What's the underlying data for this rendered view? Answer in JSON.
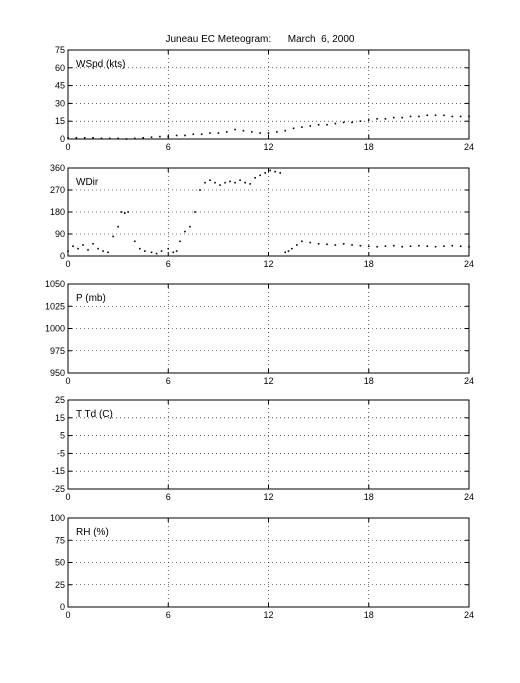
{
  "title": "Juneau EC Meteogram:      March  6, 2000",
  "x_ticks": [
    0,
    6,
    12,
    18,
    24
  ],
  "chart_data": [
    {
      "type": "scatter",
      "label": "WSpd (kts)",
      "xlim": [
        0,
        24
      ],
      "ylim": [
        0,
        75
      ],
      "yticks": [
        0,
        15,
        30,
        45,
        60,
        75
      ],
      "grid": true,
      "series": [
        {
          "x": [
            0,
            0.5,
            1,
            1.5,
            2,
            2.5,
            3,
            3.5,
            4,
            4.5,
            5,
            5.5,
            6,
            6.5,
            7,
            7.5,
            8,
            8.5,
            9,
            9.5,
            10,
            10.5,
            11,
            11.5,
            12,
            12.5,
            13,
            13.5,
            14,
            14.5,
            15,
            15.5,
            16,
            16.5,
            17,
            17.5,
            18,
            18.5,
            19,
            19.5,
            20,
            20.5,
            21,
            21.5,
            22,
            22.5,
            23,
            23.5,
            24
          ],
          "y": [
            1,
            1,
            1,
            1,
            0.5,
            0.5,
            0.5,
            0,
            0.5,
            1,
            1.5,
            2,
            2,
            3,
            3,
            4,
            4,
            5,
            5,
            6,
            8,
            7,
            6,
            5,
            5,
            6,
            7,
            9,
            10,
            11,
            12,
            12,
            13,
            14,
            14,
            15,
            16,
            17,
            17,
            18,
            18,
            19,
            19,
            20,
            20,
            20,
            19,
            19,
            19
          ]
        }
      ]
    },
    {
      "type": "scatter",
      "label": "WDir",
      "xlim": [
        0,
        24
      ],
      "ylim": [
        0,
        360
      ],
      "yticks": [
        0,
        90,
        180,
        270,
        360
      ],
      "grid": true,
      "series": [
        {
          "x": [
            0,
            0.3,
            0.6,
            0.9,
            1.2,
            1.5,
            1.8,
            2.1,
            2.4,
            2.7,
            3,
            3.2,
            3.4,
            3.6,
            4,
            4.3,
            4.6,
            5,
            5.3,
            5.6,
            6,
            6.3,
            6.5,
            6.7,
            7,
            7.3,
            7.6,
            7.9,
            8.2,
            8.5,
            8.8,
            9.1,
            9.4,
            9.7,
            10,
            10.3,
            10.6,
            10.9,
            11.2,
            11.5,
            11.8,
            12.1,
            12.4,
            12.7,
            13,
            13.2,
            13.4,
            13.7,
            14,
            14.5,
            15,
            15.5,
            16,
            16.5,
            17,
            17.5,
            18,
            18.5,
            19,
            19.5,
            20,
            20.5,
            21,
            21.5,
            22,
            22.5,
            23,
            23.5,
            24
          ],
          "y": [
            20,
            40,
            30,
            45,
            25,
            50,
            30,
            20,
            15,
            80,
            120,
            180,
            175,
            180,
            60,
            30,
            20,
            15,
            10,
            20,
            30,
            15,
            20,
            60,
            100,
            120,
            180,
            270,
            300,
            310,
            300,
            290,
            300,
            305,
            300,
            310,
            300,
            295,
            320,
            330,
            340,
            350,
            345,
            340,
            15,
            20,
            30,
            45,
            60,
            55,
            50,
            48,
            45,
            50,
            45,
            42,
            40,
            38,
            40,
            42,
            38,
            40,
            42,
            40,
            38,
            40,
            42,
            40,
            38
          ]
        }
      ]
    },
    {
      "type": "scatter",
      "label": "P (mb)",
      "xlim": [
        0,
        24
      ],
      "ylim": [
        950,
        1050
      ],
      "yticks": [
        950,
        975,
        1000,
        1025,
        1050
      ],
      "grid": true,
      "series": []
    },
    {
      "type": "scatter",
      "label": "T Td (C)",
      "xlim": [
        0,
        24
      ],
      "ylim": [
        -25,
        25
      ],
      "yticks": [
        -25,
        -15,
        -5,
        5,
        15,
        25
      ],
      "grid": true,
      "series": []
    },
    {
      "type": "scatter",
      "label": "RH (%)",
      "xlim": [
        0,
        24
      ],
      "ylim": [
        0,
        100
      ],
      "yticks": [
        0,
        25,
        50,
        75,
        100
      ],
      "grid": true,
      "series": []
    }
  ]
}
